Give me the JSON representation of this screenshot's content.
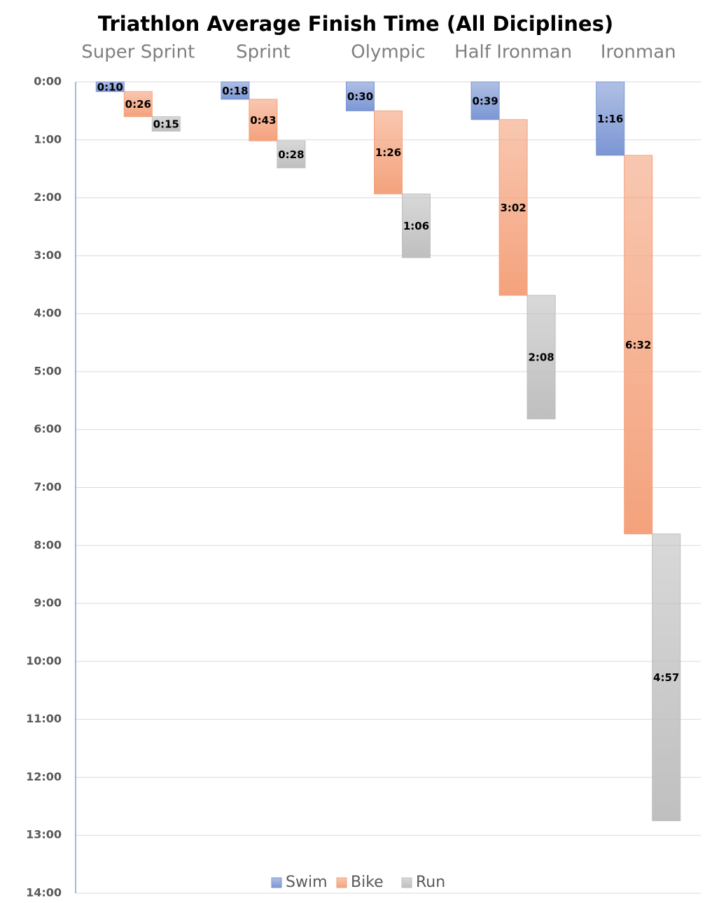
{
  "chart_data": {
    "type": "waterfall",
    "title": "Triathlon Average Finish Time (All Diciplines)",
    "categories": [
      "Super Sprint",
      "Sprint",
      "Olympic",
      "Half Ironman",
      "Ironman"
    ],
    "series": [
      {
        "name": "Swim",
        "color": "#7b96d4",
        "values": [
          0.16667,
          0.3,
          0.5,
          0.65,
          1.26667
        ],
        "value_labels": [
          "0:10",
          "0:18",
          "0:30",
          "0:39",
          "1:16"
        ]
      },
      {
        "name": "Bike",
        "color": "#f4a27c",
        "values": [
          0.43333,
          0.71667,
          1.43333,
          3.03333,
          6.53333
        ],
        "value_labels": [
          "0:26",
          "0:43",
          "1:26",
          "3:02",
          "6:32"
        ]
      },
      {
        "name": "Run",
        "color": "#bfbfbf",
        "values": [
          0.25,
          0.46667,
          1.1,
          2.13333,
          4.95
        ],
        "value_labels": [
          "0:15",
          "0:28",
          "1:06",
          "2:08",
          "4:57"
        ]
      }
    ],
    "ylim": [
      0,
      14
    ],
    "y_reversed": true,
    "yticks": [
      {
        "value": 0,
        "label": "0:00"
      },
      {
        "value": 1,
        "label": "1:00"
      },
      {
        "value": 2,
        "label": "2:00"
      },
      {
        "value": 3,
        "label": "3:00"
      },
      {
        "value": 4,
        "label": "4:00"
      },
      {
        "value": 5,
        "label": "5:00"
      },
      {
        "value": 6,
        "label": "6:00"
      },
      {
        "value": 7,
        "label": "7:00"
      },
      {
        "value": 8,
        "label": "8:00"
      },
      {
        "value": 9,
        "label": "9:00"
      },
      {
        "value": 10,
        "label": "10:00"
      },
      {
        "value": 11,
        "label": "11:00"
      },
      {
        "value": 12,
        "label": "12:00"
      },
      {
        "value": 13,
        "label": "13:00"
      },
      {
        "value": 14,
        "label": "14:00"
      }
    ],
    "grid": true,
    "legend": "bottom"
  }
}
